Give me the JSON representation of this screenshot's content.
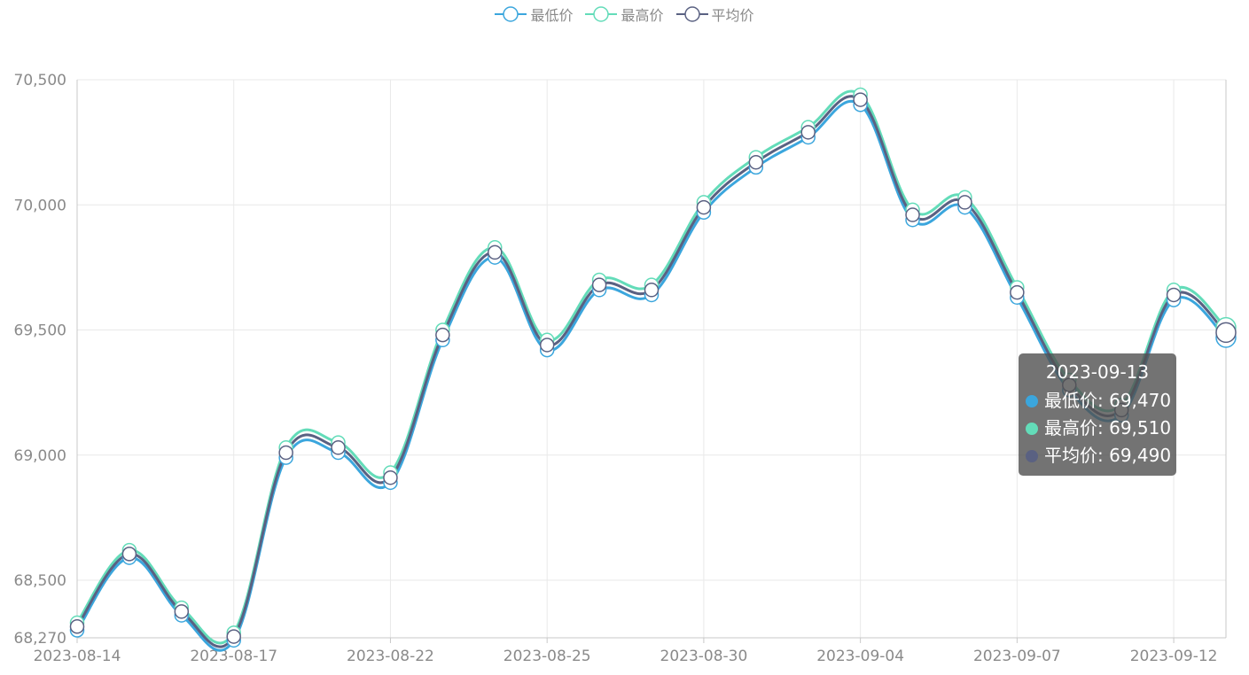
{
  "legend": [
    {
      "label": "最低价",
      "color": "#3ba6dd"
    },
    {
      "label": "最高价",
      "color": "#63dcb9"
    },
    {
      "label": "平均价",
      "color": "#5a6182"
    }
  ],
  "chart_data": {
    "type": "line",
    "smooth": true,
    "x": [
      "2023-08-14",
      "2023-08-15",
      "2023-08-16",
      "2023-08-17",
      "2023-08-18",
      "2023-08-21",
      "2023-08-22",
      "2023-08-23",
      "2023-08-24",
      "2023-08-25",
      "2023-08-28",
      "2023-08-29",
      "2023-08-30",
      "2023-08-31",
      "2023-09-01",
      "2023-09-04",
      "2023-09-05",
      "2023-09-06",
      "2023-09-07",
      "2023-09-08",
      "2023-09-11",
      "2023-09-12",
      "2023-09-13"
    ],
    "x_tick_labels": [
      "2023-08-14",
      "2023-08-17",
      "2023-08-22",
      "2023-08-25",
      "2023-08-30",
      "2023-09-04",
      "2023-09-07",
      "2023-09-12"
    ],
    "x_tick_indices": [
      0,
      3,
      6,
      9,
      12,
      15,
      18,
      21
    ],
    "series": [
      {
        "name": "最低价",
        "color": "#3ba6dd",
        "values": [
          68300,
          68590,
          68360,
          68260,
          68990,
          69010,
          68890,
          69460,
          69790,
          69420,
          69660,
          69640,
          69970,
          70150,
          70270,
          70400,
          69940,
          69990,
          69630,
          69260,
          69160,
          69620,
          69470
        ]
      },
      {
        "name": "最高价",
        "color": "#63dcb9",
        "values": [
          68330,
          68620,
          68390,
          68290,
          69030,
          69050,
          68930,
          69500,
          69830,
          69460,
          69700,
          69680,
          70010,
          70190,
          70310,
          70440,
          69980,
          70030,
          69670,
          69300,
          69200,
          69660,
          69510
        ]
      },
      {
        "name": "平均价",
        "color": "#5a6182",
        "values": [
          68315,
          68605,
          68375,
          68275,
          69010,
          69030,
          68910,
          69480,
          69810,
          69440,
          69680,
          69660,
          69990,
          70170,
          70290,
          70420,
          69960,
          70010,
          69650,
          69280,
          69180,
          69640,
          69490
        ]
      }
    ],
    "ylim": [
      68270,
      70500
    ],
    "yticks": [
      68270,
      68500,
      69000,
      69500,
      70000,
      70500
    ],
    "ytick_labels": [
      "68,270",
      "68,500",
      "69,000",
      "69,500",
      "70,000",
      "70,500"
    ],
    "grid": true,
    "legend_position": "top-center",
    "tooltip": {
      "title": "2023-09-13",
      "rows": [
        {
          "label": "最低价: 69,470",
          "color": "#3ba6dd"
        },
        {
          "label": "最高价: 69,510",
          "color": "#63dcb9"
        },
        {
          "label": "平均价: 69,490",
          "color": "#5a6182"
        }
      ]
    }
  }
}
